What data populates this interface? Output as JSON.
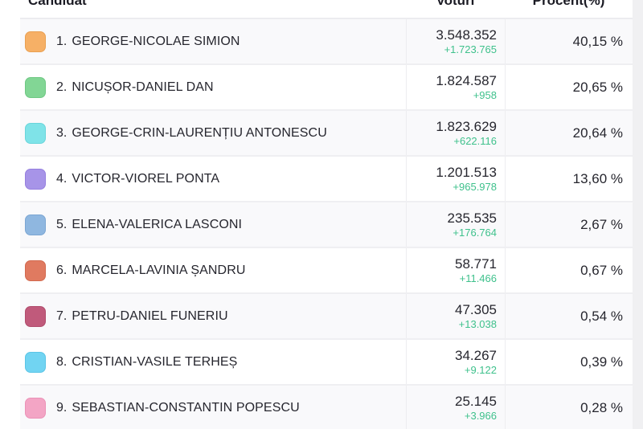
{
  "header": {
    "candidate": "Candidat",
    "votes": "Voturi",
    "percent": "Procent(%)"
  },
  "colors": {
    "delta_green": "#3fc18c",
    "row_alt_bg": "#f9f9fb",
    "divider": "#ededf0"
  },
  "table": {
    "rows": [
      {
        "rank": "1.",
        "name": "GEORGE-NICOLAE SIMION",
        "votes": "3.548.352",
        "delta": "+1.723.765",
        "percent": "40,15 %",
        "color": "#F6B066",
        "border": "#E9A052"
      },
      {
        "rank": "2.",
        "name": "NICUȘOR-DANIEL DAN",
        "votes": "1.824.587",
        "delta": "+958",
        "percent": "20,65 %",
        "color": "#82D695",
        "border": "#6FC884"
      },
      {
        "rank": "3.",
        "name": "GEORGE-CRIN-LAURENȚIU ANTONESCU",
        "votes": "1.823.629",
        "delta": "+622.116",
        "percent": "20,64 %",
        "color": "#7FE3E8",
        "border": "#6AD5DB"
      },
      {
        "rank": "4.",
        "name": "VICTOR-VIOREL PONTA",
        "votes": "1.201.513",
        "delta": "+965.978",
        "percent": "13,60 %",
        "color": "#A794E8",
        "border": "#9680DF"
      },
      {
        "rank": "5.",
        "name": "ELENA-VALERICA LASCONI",
        "votes": "235.535",
        "delta": "+176.764",
        "percent": "2,67 %",
        "color": "#8FB7E0",
        "border": "#7CA6D3"
      },
      {
        "rank": "6.",
        "name": "MARCELA-LAVINIA ȘANDRU",
        "votes": "58.771",
        "delta": "+11.466",
        "percent": "0,67 %",
        "color": "#E07A60",
        "border": "#D26A50"
      },
      {
        "rank": "7.",
        "name": "PETRU-DANIEL FUNERIU",
        "votes": "47.305",
        "delta": "+13.038",
        "percent": "0,54 %",
        "color": "#C05A7B",
        "border": "#B04D6D"
      },
      {
        "rank": "8.",
        "name": "CRISTIAN-VASILE TERHEȘ",
        "votes": "34.267",
        "delta": "+9.122",
        "percent": "0,39 %",
        "color": "#71D4F2",
        "border": "#5CC5E6"
      },
      {
        "rank": "9.",
        "name": "SEBASTIAN-CONSTANTIN POPESCU",
        "votes": "25.145",
        "delta": "+3.966",
        "percent": "0,28 %",
        "color": "#F3A5C5",
        "border": "#EB92B7"
      }
    ]
  }
}
